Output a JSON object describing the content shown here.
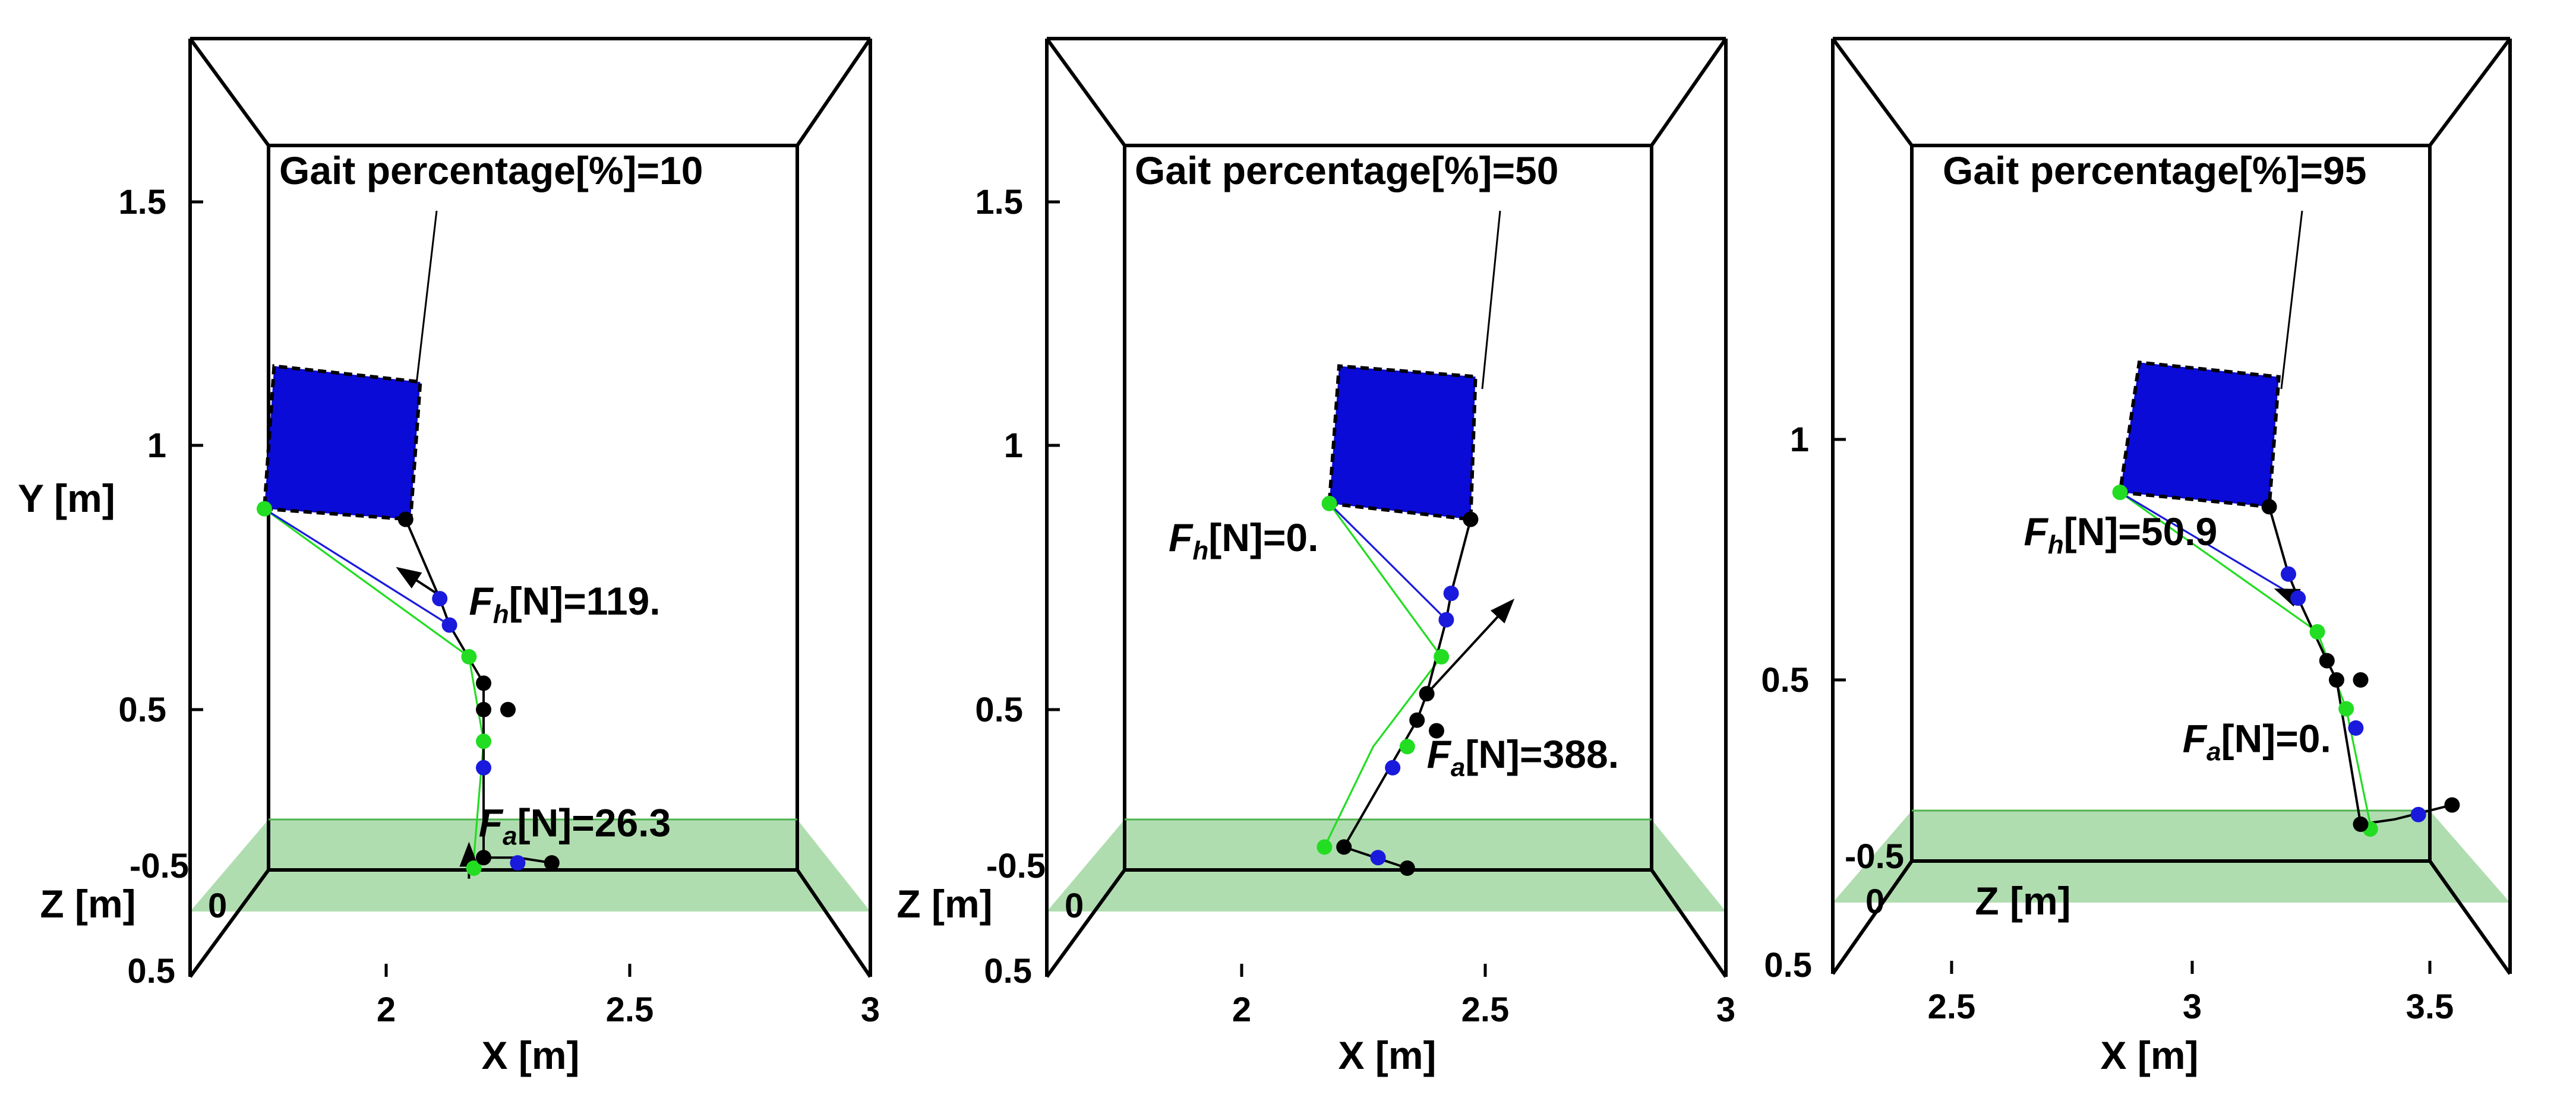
{
  "chart_data": [
    {
      "type": "scatter",
      "gait_label": "Gait percentage[%]=10",
      "xlabel": "X [m]",
      "ylabel": "Y [m]",
      "zlabel": "Z [m]",
      "xlim": [
        1.6,
        3.0
      ],
      "ylim": [
        0.0,
        1.85
      ],
      "x_ticks": [
        "2",
        "2.5",
        "3"
      ],
      "y_ticks": [
        "0.5",
        "1",
        "1.5"
      ],
      "z_ticks": [
        "-0.5",
        "0",
        "0.5"
      ],
      "trunk_box": [
        [
          1.75,
          0.88
        ],
        [
          2.05,
          0.86
        ],
        [
          2.07,
          1.12
        ],
        [
          1.77,
          1.15
        ]
      ],
      "black_chain": [
        [
          2.04,
          0.86
        ],
        [
          2.11,
          0.71
        ],
        [
          2.13,
          0.66
        ],
        [
          2.2,
          0.55
        ],
        [
          2.2,
          0.49
        ],
        [
          2.2,
          0.22
        ],
        [
          2.27,
          0.22
        ],
        [
          2.34,
          0.21
        ]
      ],
      "green_chain": [
        [
          1.75,
          0.88
        ],
        [
          2.17,
          0.6
        ],
        [
          2.2,
          0.44
        ],
        [
          2.18,
          0.22
        ]
      ],
      "blue_chain": [
        [
          1.75,
          0.88
        ],
        [
          2.13,
          0.66
        ]
      ],
      "black_points": [
        [
          2.04,
          0.86
        ],
        [
          2.2,
          0.55
        ],
        [
          2.2,
          0.5
        ],
        [
          2.25,
          0.5
        ],
        [
          2.2,
          0.22
        ],
        [
          2.34,
          0.21
        ]
      ],
      "blue_points": [
        [
          2.11,
          0.71
        ],
        [
          2.13,
          0.66
        ],
        [
          2.2,
          0.39
        ],
        [
          2.27,
          0.21
        ]
      ],
      "green_points": [
        [
          1.75,
          0.88
        ],
        [
          2.17,
          0.6
        ],
        [
          2.2,
          0.44
        ],
        [
          2.18,
          0.2
        ]
      ],
      "forces": [
        {
          "label_main": "F",
          "label_sub": "h",
          "label_rest": "[N]=119.",
          "label_at": [
            2.17,
            0.68
          ],
          "arrow_from": [
            2.12,
            0.71
          ],
          "arrow_to": [
            2.02,
            0.77
          ]
        },
        {
          "label_main": "F",
          "label_sub": "a",
          "label_rest": "[N]=26.3",
          "label_at": [
            2.19,
            0.26
          ],
          "arrow_from": [
            2.17,
            0.18
          ],
          "arrow_to": [
            2.17,
            0.25
          ]
        }
      ]
    },
    {
      "type": "scatter",
      "gait_label": "Gait percentage[%]=50",
      "xlabel": "X [m]",
      "ylabel": "",
      "zlabel": "Z [m]",
      "xlim": [
        1.6,
        3.0
      ],
      "ylim": [
        0.0,
        1.85
      ],
      "x_ticks": [
        "2",
        "2.5",
        "3"
      ],
      "y_ticks": [
        "0.5",
        "1",
        "1.5"
      ],
      "z_ticks": [
        "-0.5",
        "0",
        "0.5"
      ],
      "trunk_box": [
        [
          2.18,
          0.89
        ],
        [
          2.47,
          0.86
        ],
        [
          2.48,
          1.13
        ],
        [
          2.2,
          1.15
        ]
      ],
      "black_chain": [
        [
          2.47,
          0.86
        ],
        [
          2.43,
          0.72
        ],
        [
          2.42,
          0.67
        ],
        [
          2.38,
          0.53
        ],
        [
          2.36,
          0.48
        ],
        [
          2.21,
          0.24
        ],
        [
          2.34,
          0.2
        ]
      ],
      "green_chain": [
        [
          2.18,
          0.89
        ],
        [
          2.41,
          0.6
        ],
        [
          2.27,
          0.43
        ],
        [
          2.17,
          0.24
        ]
      ],
      "blue_chain": [
        [
          2.18,
          0.89
        ],
        [
          2.42,
          0.67
        ]
      ],
      "black_points": [
        [
          2.47,
          0.86
        ],
        [
          2.38,
          0.53
        ],
        [
          2.36,
          0.48
        ],
        [
          2.4,
          0.46
        ],
        [
          2.21,
          0.24
        ],
        [
          2.34,
          0.2
        ]
      ],
      "blue_points": [
        [
          2.43,
          0.72
        ],
        [
          2.42,
          0.67
        ],
        [
          2.31,
          0.39
        ],
        [
          2.28,
          0.22
        ]
      ],
      "green_points": [
        [
          2.18,
          0.89
        ],
        [
          2.41,
          0.6
        ],
        [
          2.34,
          0.43
        ],
        [
          2.17,
          0.24
        ]
      ],
      "forces": [
        {
          "label_main": "F",
          "label_sub": "h",
          "label_rest": "[N]=0.",
          "label_at": [
            1.85,
            0.8
          ],
          "arrow_from": null,
          "arrow_to": null
        },
        {
          "label_main": "F",
          "label_sub": "a",
          "label_rest": "[N]=388.",
          "label_at": [
            2.38,
            0.39
          ],
          "arrow_from": [
            2.38,
            0.53
          ],
          "arrow_to": [
            2.56,
            0.71
          ]
        }
      ]
    },
    {
      "type": "scatter",
      "gait_label": "Gait percentage[%]=95",
      "xlabel": "X [m]",
      "ylabel": "",
      "zlabel": "Z [m]",
      "xlim": [
        2.0,
        3.85
      ],
      "ylim": [
        0.0,
        1.85
      ],
      "x_ticks": [
        "2.5",
        "3",
        "3.5"
      ],
      "y_ticks": [
        "0.5",
        "1"
      ],
      "z_ticks": [
        "-0.5",
        "0",
        "0.5"
      ],
      "trunk_box": [
        [
          2.85,
          0.89
        ],
        [
          3.16,
          0.86
        ],
        [
          3.18,
          1.13
        ],
        [
          2.89,
          1.16
        ]
      ],
      "black_chain": [
        [
          3.16,
          0.86
        ],
        [
          3.2,
          0.72
        ],
        [
          3.22,
          0.67
        ],
        [
          3.28,
          0.54
        ],
        [
          3.3,
          0.5
        ],
        [
          3.35,
          0.2
        ],
        [
          3.42,
          0.21
        ],
        [
          3.54,
          0.24
        ]
      ],
      "green_chain": [
        [
          2.85,
          0.89
        ],
        [
          3.26,
          0.6
        ],
        [
          3.32,
          0.44
        ],
        [
          3.37,
          0.2
        ]
      ],
      "blue_chain": [
        [
          2.85,
          0.89
        ],
        [
          3.22,
          0.67
        ]
      ],
      "black_points": [
        [
          3.16,
          0.86
        ],
        [
          3.28,
          0.54
        ],
        [
          3.3,
          0.5
        ],
        [
          3.35,
          0.5
        ],
        [
          3.35,
          0.2
        ],
        [
          3.54,
          0.24
        ]
      ],
      "blue_points": [
        [
          3.2,
          0.72
        ],
        [
          3.22,
          0.67
        ],
        [
          3.34,
          0.4
        ],
        [
          3.47,
          0.22
        ]
      ],
      "green_points": [
        [
          2.85,
          0.89
        ],
        [
          3.26,
          0.6
        ],
        [
          3.32,
          0.44
        ],
        [
          3.37,
          0.19
        ]
      ],
      "forces": [
        {
          "label_main": "F",
          "label_sub": "h",
          "label_rest": "[N]=50.9",
          "label_at": [
            2.65,
            0.78
          ],
          "arrow_from": [
            3.22,
            0.67
          ],
          "arrow_to": [
            3.17,
            0.69
          ]
        },
        {
          "label_main": "F",
          "label_sub": "a",
          "label_rest": "[N]=0.",
          "label_at": [
            2.98,
            0.35
          ],
          "arrow_from": null,
          "arrow_to": null
        }
      ]
    }
  ],
  "colors": {
    "trunk": "#0b0bd8",
    "blue_segment": "#1a1adc",
    "green_segment": "#22dd22",
    "ground": "#4fb34f",
    "frame": "#000000"
  }
}
